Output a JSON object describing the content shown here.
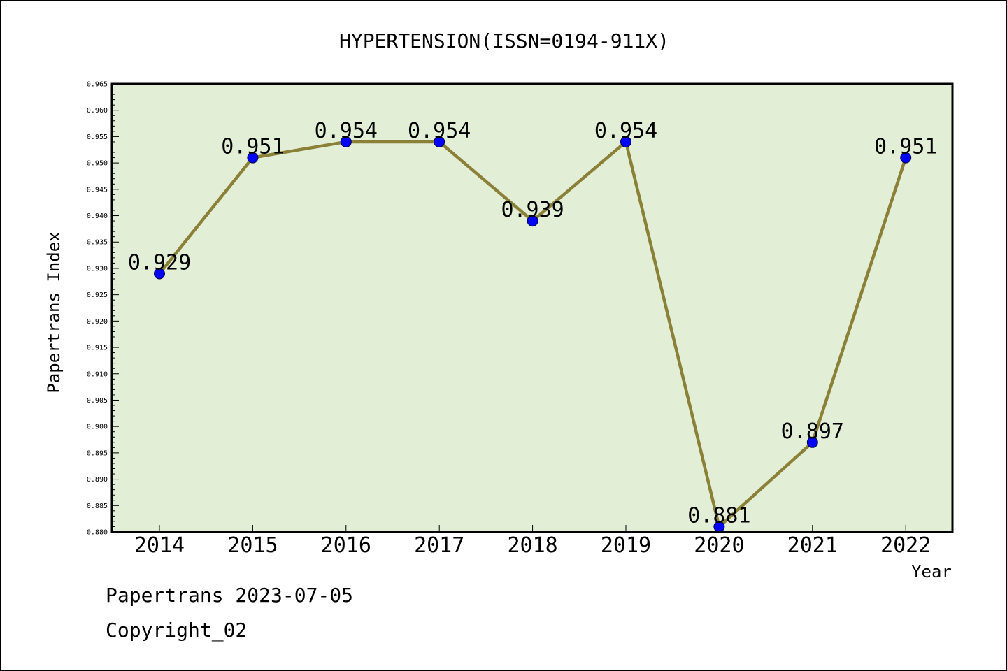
{
  "chart_data": {
    "type": "line",
    "title": "HYPERTENSION(ISSN=0194-911X)",
    "xlabel": "Year",
    "ylabel": "Papertrans Index",
    "x": [
      "2014",
      "2015",
      "2016",
      "2017",
      "2018",
      "2019",
      "2020",
      "2021",
      "2022"
    ],
    "values": [
      0.929,
      0.951,
      0.954,
      0.954,
      0.939,
      0.954,
      0.881,
      0.897,
      0.951
    ],
    "data_labels": [
      "0.929",
      "0.951",
      "0.954",
      "0.954",
      "0.939",
      "0.954",
      "0.881",
      "0.897",
      "0.951"
    ],
    "y_ticks": [
      "0.880",
      "0.885",
      "0.890",
      "0.895",
      "0.900",
      "0.905",
      "0.910",
      "0.915",
      "0.920",
      "0.925",
      "0.930",
      "0.935",
      "0.940",
      "0.945",
      "0.950",
      "0.955",
      "0.960",
      "0.965"
    ],
    "ylim": [
      0.88,
      0.965
    ],
    "grid": false,
    "colors": {
      "line": "#8b8038",
      "marker": "#0000ff",
      "plot_background": "#e2efd6"
    }
  },
  "footer": {
    "line1": "Papertrans 2023-07-05",
    "line2": "Copyright_02"
  }
}
